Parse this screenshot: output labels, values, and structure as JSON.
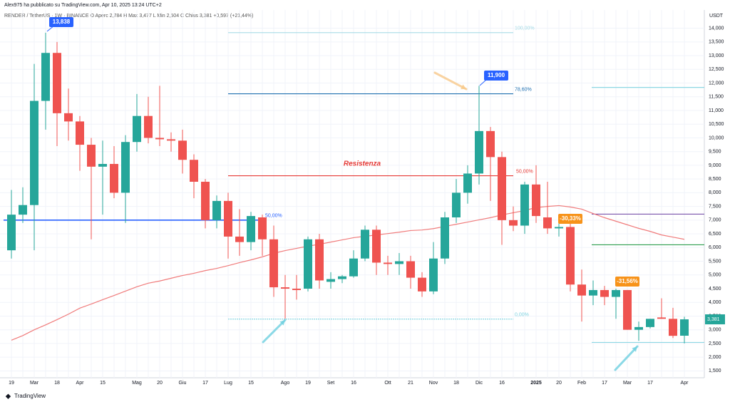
{
  "header": {
    "author_line": "Alex975 ha pubblicato su TradingView.com, Apr 10, 2025 13:24 UTC+2",
    "symbol_line": "RENDER / TetherUS · 1W · BINANCE  O  Aperc 2,784  H  Max 3,477  L  Min 2,504  C  Chius 3,381  +0,597 (+21,44%)"
  },
  "footer": {
    "logo": "TradingView"
  },
  "chart_data": {
    "type": "candlestick",
    "unit": "USDT",
    "up_color": "#26a69a",
    "down_color": "#ef5350",
    "categories": [
      "19",
      null,
      "Mar",
      null,
      "18",
      null,
      "Apr",
      null,
      "15",
      null,
      null,
      "Mag",
      null,
      "20",
      null,
      "Giu",
      null,
      "17",
      null,
      "Lug",
      null,
      "15",
      null,
      null,
      "Ago",
      null,
      "19",
      null,
      "Set",
      null,
      "16",
      null,
      null,
      "Ott",
      null,
      "21",
      null,
      "Nov",
      null,
      "18",
      null,
      "Dic",
      null,
      "16",
      null,
      null,
      "2025",
      null,
      "20",
      null,
      "Feb",
      null,
      "17",
      null,
      "Mar",
      null,
      "17",
      null,
      null,
      "Apr"
    ],
    "open": [
      5900,
      7200,
      7550,
      11350,
      13100,
      10900,
      10600,
      9750,
      8950,
      9050,
      8000,
      9850,
      10800,
      10000,
      9950,
      9900,
      9200,
      8400,
      7000,
      7700,
      6400,
      6200,
      7100,
      6300,
      4550,
      4500,
      4500,
      6300,
      4750,
      4850,
      4950,
      5600,
      6650,
      5450,
      5400,
      5500,
      4900,
      4400,
      5600,
      7100,
      8000,
      8700,
      10250,
      9300,
      7000,
      6800,
      8300,
      7100,
      6700,
      6750,
      4650,
      4250,
      4450,
      4200,
      4450,
      3000,
      3100,
      3450,
      3400,
      2784
    ],
    "high": [
      8100,
      8200,
      12700,
      13838,
      13500,
      11800,
      10800,
      10000,
      9900,
      9700,
      10100,
      11600,
      11500,
      11900,
      10200,
      10300,
      9400,
      8500,
      7900,
      8000,
      7400,
      7300,
      7200,
      6800,
      5000,
      5000,
      6400,
      6500,
      5100,
      5000,
      5900,
      6800,
      6800,
      5700,
      5800,
      5700,
      5100,
      6200,
      7300,
      8500,
      9000,
      11900,
      10400,
      9500,
      7500,
      8400,
      9000,
      8400,
      7000,
      6900,
      5200,
      4800,
      4600,
      4500,
      4450,
      3300,
      3400,
      4150,
      3800,
      3477
    ],
    "low": [
      5600,
      6900,
      5900,
      10300,
      9700,
      9900,
      8800,
      6300,
      7200,
      7800,
      6900,
      9500,
      9800,
      9700,
      9500,
      8700,
      7800,
      6700,
      6700,
      5600,
      5700,
      5900,
      5700,
      4200,
      3400,
      4100,
      4400,
      4500,
      4500,
      4700,
      4900,
      5500,
      5000,
      5000,
      5000,
      4500,
      4200,
      4300,
      5400,
      6900,
      7600,
      8300,
      7700,
      6100,
      6600,
      6500,
      6900,
      6500,
      6400,
      4400,
      3300,
      3900,
      3900,
      3400,
      3000,
      2600,
      3050,
      3400,
      2700,
      2504
    ],
    "close": [
      7200,
      7550,
      11350,
      13100,
      10900,
      10600,
      9750,
      8950,
      9050,
      8000,
      9850,
      10800,
      10000,
      9950,
      9900,
      9200,
      8400,
      7000,
      7700,
      6400,
      6200,
      7150,
      6300,
      4550,
      4500,
      4450,
      6300,
      4800,
      4850,
      4950,
      5600,
      6650,
      5450,
      5400,
      5500,
      4900,
      4400,
      5600,
      7100,
      8000,
      8700,
      10250,
      9300,
      7000,
      6800,
      8300,
      7150,
      6700,
      6750,
      4650,
      4250,
      4450,
      4200,
      4450,
      3000,
      3100,
      3400,
      3400,
      2780,
      3381
    ],
    "overlay": {
      "color": "#f07b7b",
      "values": [
        2620,
        2790,
        3000,
        3180,
        3370,
        3570,
        3790,
        3940,
        4100,
        4250,
        4410,
        4570,
        4700,
        4780,
        4880,
        4980,
        5060,
        5160,
        5240,
        5340,
        5450,
        5550,
        5660,
        5790,
        5890,
        5970,
        6050,
        6120,
        6200,
        6280,
        6360,
        6410,
        6460,
        6510,
        6560,
        6620,
        6640,
        6690,
        6770,
        6850,
        6930,
        7010,
        7090,
        7190,
        7270,
        7350,
        7460,
        7500,
        7530,
        7480,
        7400,
        7240,
        7090,
        6960,
        6830,
        6700,
        6590,
        6460,
        6380,
        6300
      ]
    },
    "levels": [
      {
        "value": 7000,
        "color": "#2962ff",
        "label": "50,00%"
      },
      {
        "value": 8620,
        "color": "#e53935",
        "label": "50,00%"
      },
      {
        "value": 11610,
        "color": "#1e6fb0",
        "label": "78,60%"
      },
      {
        "value": 13840,
        "color": "#a6dbe6",
        "label": "100,00%"
      },
      {
        "value": 3390,
        "color": "#7fd3e0",
        "label": "0,00%"
      },
      {
        "value": 11840,
        "color": "#7fd3e0"
      },
      {
        "value": 7220,
        "color": "#6a3fa0"
      },
      {
        "value": 6100,
        "color": "#2e9e4f"
      },
      {
        "value": 2540,
        "color": "#7fd3e0"
      }
    ],
    "annotations": {
      "resistance": "Resistenza",
      "high_callout": "13,838",
      "dec_callout": "11,900",
      "drop1": "-30,33%",
      "drop2": "-31,56%",
      "last_price": "3,381"
    },
    "ylim": [
      1250,
      14250
    ],
    "yticks": [
      {
        "value": 1500,
        "label": "1,500"
      },
      {
        "value": 2000,
        "label": "2,000"
      },
      {
        "value": 2500,
        "label": "2,500"
      },
      {
        "value": 3000,
        "label": "3,000"
      },
      {
        "value": 3500,
        "label": "3,500"
      },
      {
        "value": 4000,
        "label": "4,000"
      },
      {
        "value": 4500,
        "label": "4,500"
      },
      {
        "value": 5000,
        "label": "5,000"
      },
      {
        "value": 5500,
        "label": "5,500"
      },
      {
        "value": 6000,
        "label": "6,000"
      },
      {
        "value": 6500,
        "label": "6,500"
      },
      {
        "value": 7000,
        "label": "7,000"
      },
      {
        "value": 7500,
        "label": "7,500"
      },
      {
        "value": 8000,
        "label": "8,000"
      },
      {
        "value": 8500,
        "label": "8,500"
      },
      {
        "value": 9000,
        "label": "9,000"
      },
      {
        "value": 9500,
        "label": "9,500"
      },
      {
        "value": 10000,
        "label": "10,000"
      },
      {
        "value": 10500,
        "label": "10,500"
      },
      {
        "value": 11000,
        "label": "11,000"
      },
      {
        "value": 11500,
        "label": "11,500"
      },
      {
        "value": 12000,
        "label": "12,000"
      },
      {
        "value": 12500,
        "label": "12,500"
      },
      {
        "value": 13000,
        "label": "13,000"
      },
      {
        "value": 13500,
        "label": "13,500"
      },
      {
        "value": 14000,
        "label": "14,000"
      }
    ],
    "grid": true
  }
}
